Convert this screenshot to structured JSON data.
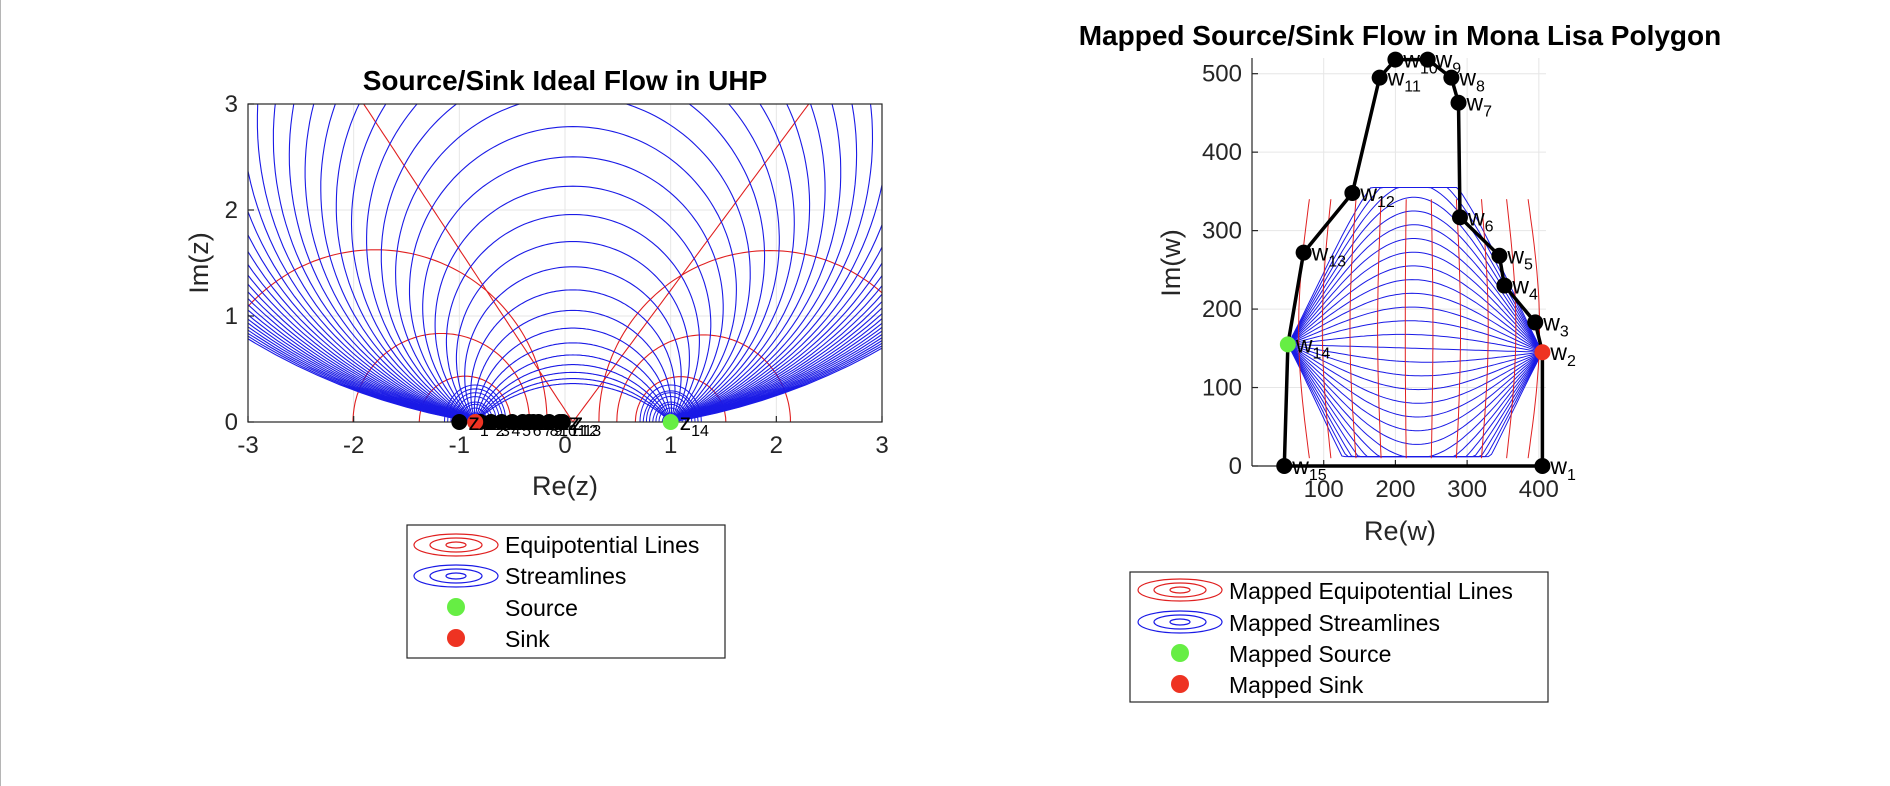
{
  "colors": {
    "equipotential": "#e02020",
    "streamline": "#1a1ae6",
    "source": "#66ee44",
    "sink": "#ee3322",
    "vertex": "#000000",
    "grid": "#e6e6e6",
    "axis": "#262626"
  },
  "chart_data": [
    {
      "type": "line",
      "title": "Source/Sink Ideal Flow in UHP",
      "xlabel": "Re(z)",
      "ylabel": "Im(z)",
      "xlim": [
        -3,
        3
      ],
      "ylim": [
        0,
        3
      ],
      "xticks": [
        -3,
        -2,
        -1,
        0,
        1,
        2,
        3
      ],
      "yticks": [
        0,
        1,
        2,
        3
      ],
      "grid": true,
      "legend_position": "below",
      "source": {
        "x": 1,
        "y": 0
      },
      "sink": {
        "x": -0.85,
        "y": 0
      },
      "series": [
        {
          "name": "Equipotential Lines"
        },
        {
          "name": "Streamlines"
        },
        {
          "name": "Source"
        },
        {
          "name": "Sink"
        }
      ],
      "prevertices": [
        {
          "label": "z",
          "sub": "1",
          "x": -1.0,
          "y": 0
        },
        {
          "label": "z",
          "sub": "2",
          "x": -0.85,
          "y": 0
        },
        {
          "label": "z",
          "sub": "3",
          "x": -0.8,
          "y": 0
        },
        {
          "label": "z",
          "sub": "4",
          "x": -0.7,
          "y": 0
        },
        {
          "label": "z",
          "sub": "5",
          "x": -0.6,
          "y": 0
        },
        {
          "label": "z",
          "sub": "6",
          "x": -0.5,
          "y": 0
        },
        {
          "label": "z",
          "sub": "7",
          "x": -0.4,
          "y": 0
        },
        {
          "label": "z",
          "sub": "8",
          "x": -0.34,
          "y": 0
        },
        {
          "label": "z",
          "sub": "9",
          "x": -0.3,
          "y": 0
        },
        {
          "label": "z",
          "sub": "10",
          "x": -0.25,
          "y": 0
        },
        {
          "label": "z",
          "sub": "11",
          "x": -0.15,
          "y": 0
        },
        {
          "label": "z",
          "sub": "12",
          "x": -0.05,
          "y": 0
        },
        {
          "label": "z",
          "sub": "13",
          "x": -0.02,
          "y": 0
        },
        {
          "label": "z",
          "sub": "14",
          "x": 1.0,
          "y": 0
        }
      ]
    },
    {
      "type": "line",
      "title": "Mapped Source/Sink Flow in Mona Lisa Polygon",
      "xlabel": "Re(w)",
      "ylabel": "Im(w)",
      "xlim": [
        0,
        410
      ],
      "ylim": [
        0,
        520
      ],
      "xticks": [
        100,
        200,
        300,
        400
      ],
      "yticks": [
        0,
        100,
        200,
        300,
        400,
        500
      ],
      "grid": true,
      "legend_position": "below",
      "source": {
        "x": 50,
        "y": 155
      },
      "sink": {
        "x": 405,
        "y": 145
      },
      "series": [
        {
          "name": "Mapped Equipotential Lines"
        },
        {
          "name": "Mapped Streamlines"
        },
        {
          "name": "Mapped Source"
        },
        {
          "name": "Mapped Sink"
        }
      ],
      "vertices": [
        {
          "label": "w",
          "sub": "1",
          "x": 405,
          "y": 0
        },
        {
          "label": "w",
          "sub": "2",
          "x": 405,
          "y": 145
        },
        {
          "label": "w",
          "sub": "3",
          "x": 395,
          "y": 183
        },
        {
          "label": "w",
          "sub": "4",
          "x": 352,
          "y": 230
        },
        {
          "label": "w",
          "sub": "5",
          "x": 345,
          "y": 268
        },
        {
          "label": "w",
          "sub": "6",
          "x": 290,
          "y": 317
        },
        {
          "label": "w",
          "sub": "7",
          "x": 288,
          "y": 463
        },
        {
          "label": "w",
          "sub": "8",
          "x": 278,
          "y": 495
        },
        {
          "label": "w",
          "sub": "9",
          "x": 245,
          "y": 518
        },
        {
          "label": "w",
          "sub": "10",
          "x": 200,
          "y": 518
        },
        {
          "label": "w",
          "sub": "11",
          "x": 178,
          "y": 495
        },
        {
          "label": "w",
          "sub": "12",
          "x": 140,
          "y": 348
        },
        {
          "label": "w",
          "sub": "13",
          "x": 72,
          "y": 272
        },
        {
          "label": "w",
          "sub": "14",
          "x": 50,
          "y": 155
        },
        {
          "label": "w",
          "sub": "15",
          "x": 45,
          "y": 0
        }
      ]
    }
  ]
}
